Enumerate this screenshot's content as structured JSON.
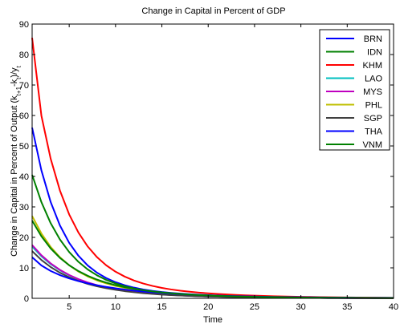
{
  "chart_data": {
    "type": "line",
    "title": "Change in Capital in Percent of GDP",
    "xlabel": "Time",
    "ylabel_main": "Change in Capital in Percent of Output (k",
    "ylabel_sub1": "t+1",
    "ylabel_mid": "-k",
    "ylabel_sub2": "t",
    "ylabel_after": ")/y",
    "ylabel_sub3": "t",
    "xlim": [
      1,
      40
    ],
    "ylim": [
      0,
      90
    ],
    "x_ticks": [
      5,
      10,
      15,
      20,
      25,
      30,
      35,
      40
    ],
    "y_ticks": [
      0,
      10,
      20,
      30,
      40,
      50,
      60,
      70,
      80,
      90
    ],
    "grid": false,
    "legend_position": "top-right",
    "x": [
      1,
      2,
      3,
      4,
      5,
      6,
      7,
      8,
      9,
      10,
      11,
      12,
      13,
      14,
      15,
      16,
      17,
      18,
      19,
      20,
      21,
      22,
      23,
      24,
      25,
      26,
      27,
      28,
      29,
      30,
      31,
      32,
      33,
      34,
      35,
      36,
      37,
      38,
      39,
      40
    ],
    "series": [
      {
        "name": "BRN",
        "color": "#0000FF",
        "values": [
          56,
          41.99,
          31.6,
          23.91,
          18.2,
          13.95,
          10.78,
          8.42,
          6.64,
          5.3,
          4.28,
          3.51,
          2.91,
          2.44,
          2.07,
          1.78,
          1.54,
          1.35,
          1.19,
          1.05,
          0.93,
          0.83,
          0.74,
          0.67,
          0.6,
          0.54,
          0.49,
          0.44,
          0.4,
          0.36,
          0.33,
          0.3,
          0.27,
          0.25,
          0.23,
          0.21,
          0.19,
          0.17,
          0.16,
          0.15
        ]
      },
      {
        "name": "IDN",
        "color": "#008000",
        "values": [
          40.5,
          31.57,
          24.66,
          19.31,
          15.18,
          11.97,
          9.48,
          7.55,
          6.04,
          4.87,
          3.96,
          3.24,
          2.67,
          2.22,
          1.86,
          1.58,
          1.35,
          1.16,
          1.0,
          0.87,
          0.76,
          0.66,
          0.58,
          0.51,
          0.45,
          0.4,
          0.35,
          0.31,
          0.28,
          0.25,
          0.22,
          0.2,
          0.18,
          0.16,
          0.14,
          0.13,
          0.12,
          0.11,
          0.1,
          0.09
        ]
      },
      {
        "name": "KHM",
        "color": "#FF0000",
        "values": [
          85.5,
          59.94,
          45.8,
          35.37,
          27.52,
          21.56,
          17.0,
          13.51,
          10.82,
          8.74,
          7.12,
          5.85,
          4.85,
          4.06,
          3.42,
          2.91,
          2.5,
          2.16,
          1.88,
          1.64,
          1.44,
          1.27,
          1.12,
          0.99,
          0.88,
          0.78,
          0.7,
          0.62,
          0.56,
          0.5,
          0.45,
          0.4,
          0.36,
          0.33,
          0.3,
          0.27,
          0.24,
          0.22,
          0.2,
          0.18
        ]
      },
      {
        "name": "LAO",
        "color": "#00BFBF",
        "values": [
          17,
          13.79,
          11.23,
          9.19,
          7.55,
          6.23,
          5.16,
          4.29,
          3.58,
          3.0,
          2.52,
          2.13,
          1.8,
          1.53,
          1.3,
          1.11,
          0.95,
          0.82,
          0.7,
          0.61,
          0.52,
          0.45,
          0.39,
          0.34,
          0.3,
          0.26,
          0.23,
          0.2,
          0.17,
          0.15,
          0.13,
          0.12,
          0.1,
          0.09,
          0.08,
          0.07,
          0.06,
          0.05,
          0.05,
          0.04
        ]
      },
      {
        "name": "MYS",
        "color": "#BF00BF",
        "values": [
          17.5,
          14.13,
          11.47,
          9.35,
          7.66,
          6.3,
          5.2,
          4.32,
          3.6,
          3.01,
          2.52,
          2.12,
          1.79,
          1.52,
          1.29,
          1.1,
          0.94,
          0.81,
          0.69,
          0.6,
          0.52,
          0.45,
          0.39,
          0.34,
          0.29,
          0.26,
          0.22,
          0.2,
          0.17,
          0.15,
          0.13,
          0.12,
          0.1,
          0.09,
          0.08,
          0.07,
          0.06,
          0.05,
          0.05,
          0.04
        ]
      },
      {
        "name": "PHL",
        "color": "#BFBF00",
        "values": [
          27,
          21.28,
          16.88,
          13.48,
          10.84,
          8.78,
          7.16,
          5.89,
          4.88,
          4.07,
          3.42,
          2.89,
          2.46,
          2.1,
          1.81,
          1.56,
          1.35,
          1.17,
          1.02,
          0.89,
          0.78,
          0.69,
          0.61,
          0.54,
          0.48,
          0.42,
          0.38,
          0.34,
          0.3,
          0.27,
          0.24,
          0.22,
          0.19,
          0.17,
          0.16,
          0.14,
          0.13,
          0.12,
          0.1,
          0.09
        ]
      },
      {
        "name": "SGP",
        "color": "#404040",
        "values": [
          15.5,
          12.58,
          10.26,
          8.4,
          6.91,
          5.71,
          4.74,
          3.95,
          3.31,
          2.78,
          2.35,
          1.99,
          1.69,
          1.44,
          1.23,
          1.06,
          0.91,
          0.79,
          0.68,
          0.59,
          0.51,
          0.45,
          0.39,
          0.34,
          0.3,
          0.26,
          0.23,
          0.2,
          0.18,
          0.16,
          0.14,
          0.12,
          0.11,
          0.1,
          0.09,
          0.08,
          0.07,
          0.06,
          0.05,
          0.05
        ]
      },
      {
        "name": "THA",
        "color": "#0000FF",
        "values": [
          13.5,
          10.78,
          8.98,
          7.61,
          6.53,
          5.65,
          4.91,
          4.28,
          3.74,
          3.28,
          2.88,
          2.54,
          2.24,
          1.98,
          1.76,
          1.56,
          1.39,
          1.24,
          1.11,
          0.99,
          0.89,
          0.8,
          0.72,
          0.65,
          0.58,
          0.52,
          0.47,
          0.43,
          0.39,
          0.35,
          0.32,
          0.29,
          0.26,
          0.24,
          0.22,
          0.2,
          0.18,
          0.16,
          0.15,
          0.14
        ]
      },
      {
        "name": "VNM",
        "color": "#008000",
        "values": [
          25.5,
          20.36,
          16.38,
          13.28,
          10.85,
          8.93,
          7.39,
          6.15,
          5.15,
          4.33,
          3.66,
          3.11,
          2.65,
          2.27,
          1.95,
          1.68,
          1.45,
          1.26,
          1.09,
          0.95,
          0.83,
          0.73,
          0.64,
          0.56,
          0.5,
          0.44,
          0.39,
          0.35,
          0.31,
          0.27,
          0.24,
          0.22,
          0.19,
          0.17,
          0.15,
          0.14,
          0.12,
          0.11,
          0.1,
          0.09
        ]
      }
    ]
  }
}
